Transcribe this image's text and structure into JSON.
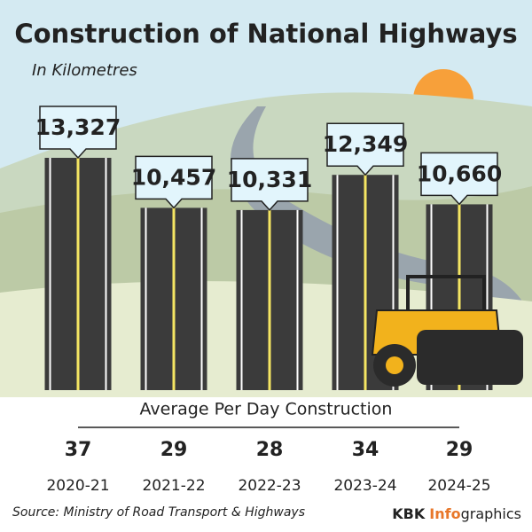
{
  "chart_data": {
    "type": "bar",
    "title": "Construction of National Highways",
    "subtitle": "In Kilometres",
    "categories": [
      "2020-21",
      "2021-22",
      "2022-23",
      "2023-24",
      "2024-25"
    ],
    "values": [
      13327,
      10457,
      10331,
      12349,
      10660
    ],
    "value_labels": [
      "13,327",
      "10,457",
      "10,331",
      "12,349",
      "10,660"
    ],
    "color": "#3b3b3b",
    "per_day": {
      "label": "Average Per Day Construction",
      "values": [
        37,
        29,
        28,
        34,
        29
      ]
    },
    "source": "Source: Ministry of Road Transport & Highways",
    "brand": [
      "KBK",
      "Info",
      "graphics"
    ]
  }
}
